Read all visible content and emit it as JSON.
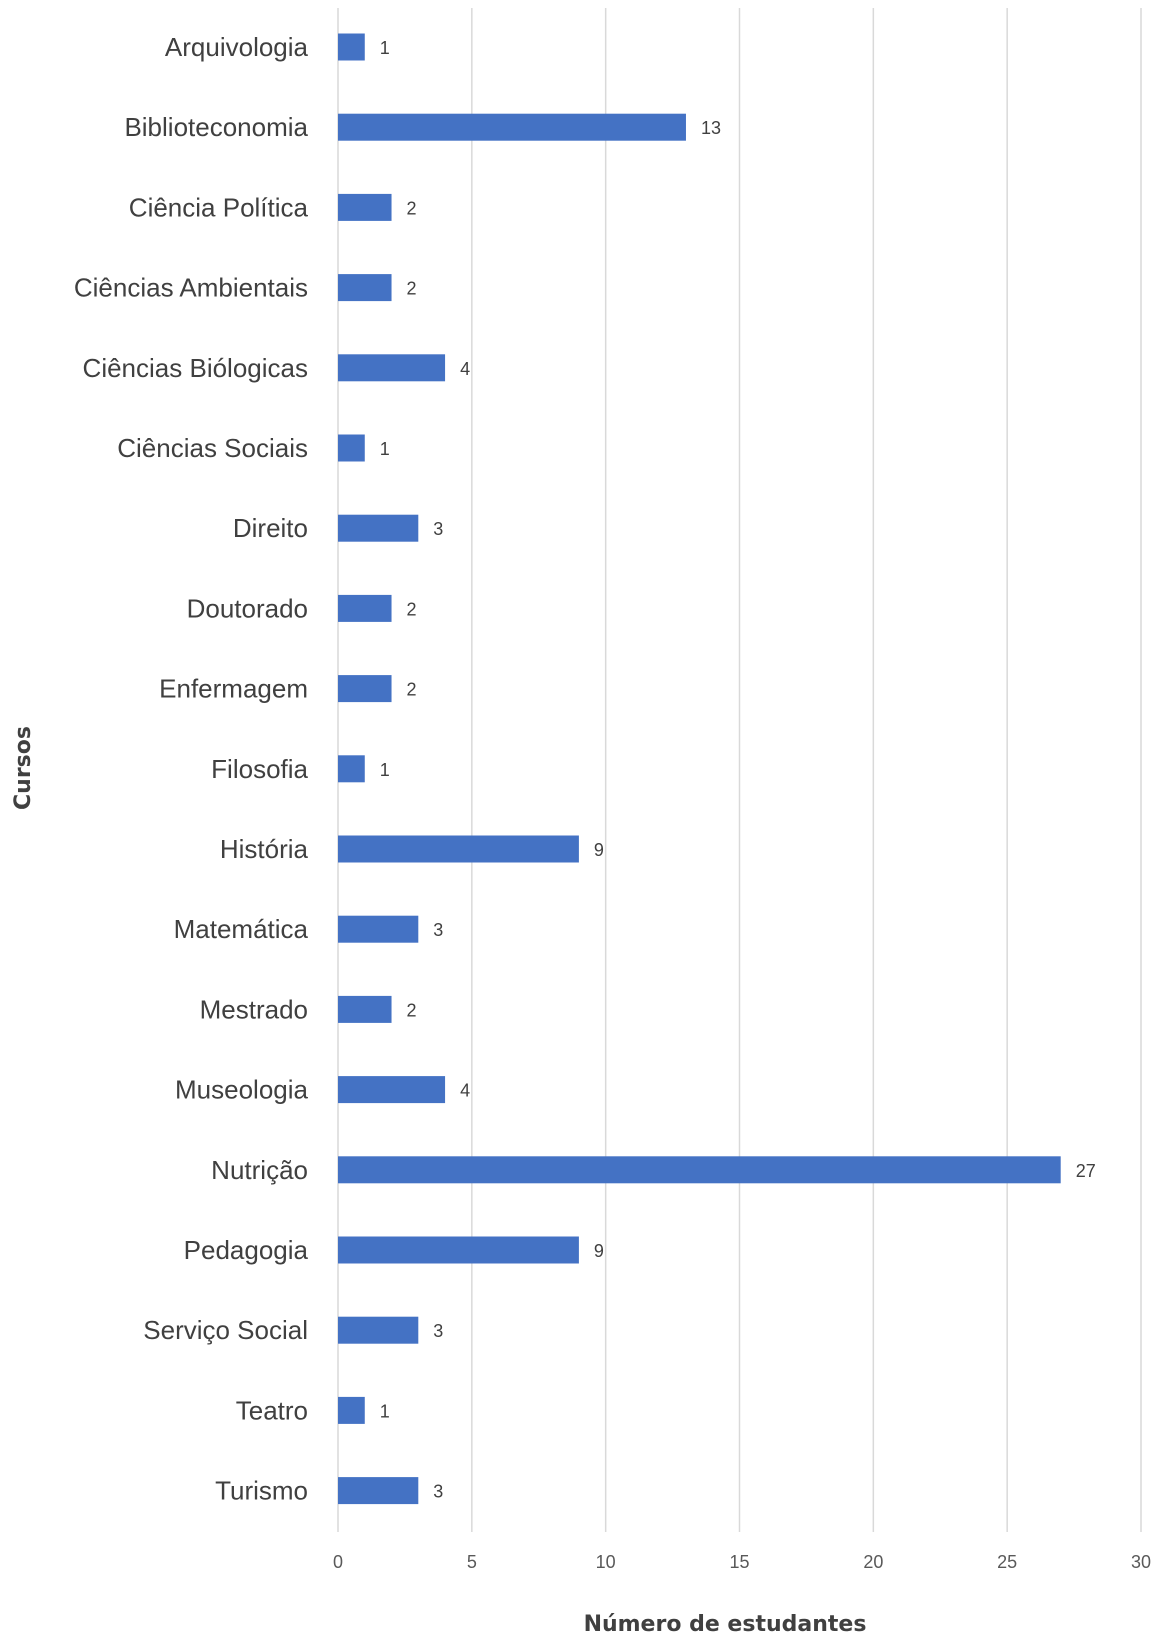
{
  "chart_data": {
    "type": "bar",
    "orientation": "horizontal",
    "categories": [
      "Arquivologia",
      "Biblioteconomia",
      "Ciência Política",
      "Ciências Ambientais",
      "Ciências Biólogicas",
      "Ciências Sociais",
      "Direito",
      "Doutorado",
      "Enfermagem",
      "Filosofia",
      "História",
      "Matemática",
      "Mestrado",
      "Museologia",
      "Nutrição",
      "Pedagogia",
      "Serviço Social",
      "Teatro",
      "Turismo"
    ],
    "values": [
      1,
      13,
      2,
      2,
      4,
      1,
      3,
      2,
      2,
      1,
      9,
      3,
      2,
      4,
      27,
      9,
      3,
      1,
      3
    ],
    "xlabel": "Número de estudantes",
    "ylabel": "Cursos",
    "xlim": [
      0,
      30
    ],
    "xticks": [
      0,
      5,
      10,
      15,
      20,
      25,
      30
    ],
    "grid": "vertical",
    "data_labels": true,
    "bar_color": "#4472c4"
  }
}
